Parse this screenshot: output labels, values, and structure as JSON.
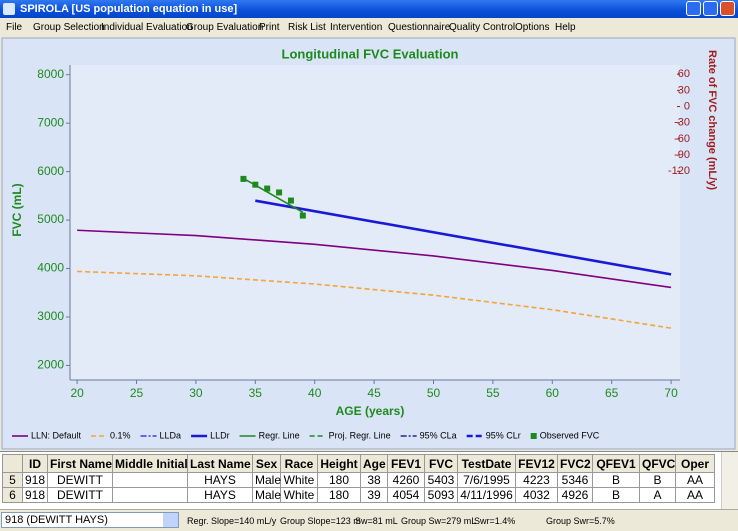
{
  "window": {
    "title": "SPIROLA  [US population equation in use]"
  },
  "menu": [
    "File",
    "Group Selection",
    "Individual Evaluation",
    "Group Evaluation",
    "Print",
    "Risk List",
    "Intervention",
    "Questionnaire",
    "Quality Control",
    "Options",
    "Help"
  ],
  "chart_data": {
    "type": "line",
    "title": "Longitudinal FVC Evaluation",
    "x_label": "AGE (years)",
    "y_label": "FVC (mL)",
    "y2_label": "Rate of FVC change (mL/y)",
    "xlim": [
      19.4,
      70.75
    ],
    "xticks": [
      20,
      25,
      30,
      35,
      40,
      45,
      50,
      55,
      60,
      65,
      70
    ],
    "ylim": [
      1700,
      8200
    ],
    "yticks": [
      2000,
      3000,
      4000,
      5000,
      6000,
      7000,
      8000
    ],
    "y2lim": [
      -507,
      77
    ],
    "y2ticks": [
      60,
      30,
      0,
      -30,
      -60,
      -90,
      -120
    ],
    "legend": "bottom",
    "series": [
      {
        "name": "LLN: Default",
        "color": "#800080",
        "style": "solid",
        "x": [
          20,
          30,
          40,
          50,
          60,
          70
        ],
        "values": [
          4790,
          4680,
          4500,
          4260,
          3960,
          3610
        ]
      },
      {
        "name": "0.1%",
        "color": "#f5a33c",
        "style": "dashed",
        "x": [
          20,
          30,
          40,
          50,
          60,
          70
        ],
        "values": [
          3940,
          3850,
          3680,
          3450,
          3150,
          2770
        ]
      },
      {
        "name": "LLDa",
        "color": "#1a1ad6",
        "style": "dash-dot",
        "x": [],
        "values": []
      },
      {
        "name": "LLDr",
        "color": "#1a1ad6",
        "style": "thick",
        "x": [
          35,
          70
        ],
        "values": [
          5400,
          3880
        ]
      },
      {
        "name": "Regr. Line",
        "color": "#1e8a1e",
        "style": "solid",
        "x": [
          34,
          39
        ],
        "values": [
          5860,
          5160
        ]
      },
      {
        "name": "Proj. Regr. Line",
        "color": "#1e8a1e",
        "style": "dashed",
        "x": [],
        "values": []
      },
      {
        "name": "95% CLa",
        "color": "#000080",
        "style": "dash-dot",
        "x": [],
        "values": []
      },
      {
        "name": "95% CLr",
        "color": "#1a1ad6",
        "style": "thick-dashed",
        "x": [],
        "values": []
      },
      {
        "name": "Observed FVC",
        "color": "#1e8a1e",
        "style": "markers",
        "x": [
          34,
          35,
          36,
          37,
          38,
          39
        ],
        "values": [
          5850,
          5730,
          5650,
          5570,
          5403,
          5093
        ]
      }
    ]
  },
  "table": {
    "columns": [
      "ID",
      "First Name",
      "Middle Initial",
      "Last Name",
      "Sex",
      "Race",
      "Height",
      "Age",
      "FEV1",
      "FVC",
      "TestDate",
      "FEV12",
      "FVC2",
      "QFEV1",
      "QFVC",
      "Oper"
    ],
    "rows": [
      [
        5,
        918,
        "DEWITT",
        null,
        "HAYS",
        "Male",
        "White",
        180,
        38,
        4260,
        5403,
        "7/6/1995",
        4223,
        5346,
        "B",
        "B",
        "AA"
      ],
      [
        6,
        918,
        "DEWITT",
        null,
        "HAYS",
        "Male",
        "White",
        180,
        39,
        4054,
        5093,
        "4/11/1996",
        4032,
        4926,
        "B",
        "A",
        "AA"
      ]
    ]
  },
  "status": {
    "selector": "918 (DEWITT HAYS)",
    "items": [
      "Regr. Slope=140 mL/y",
      "Group Slope=123 m",
      "Sw=81 mL",
      "Group Sw=279 mL",
      "Swr=1.4%",
      "Group Swr=5.7%"
    ]
  }
}
